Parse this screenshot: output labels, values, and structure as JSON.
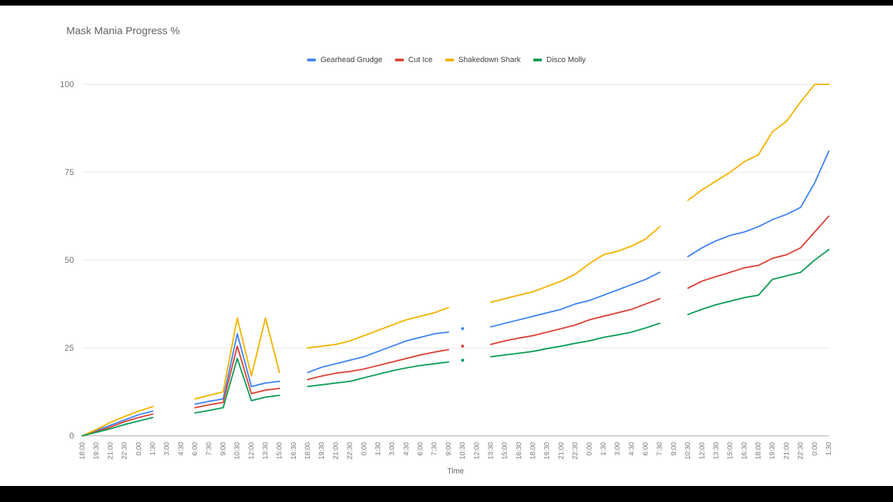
{
  "page": {
    "background": "#000000",
    "card_background": "#ffffff"
  },
  "chart_data": {
    "type": "line",
    "title": "Mask Mania Progress %",
    "xlabel": "Time",
    "ylabel": "",
    "ylim": [
      0,
      100
    ],
    "yticks": [
      0,
      25,
      50,
      75,
      100
    ],
    "grid": true,
    "legend_position": "top",
    "colors": {
      "grid": "#e6e6e6",
      "axis_baseline": "#9e9e9e",
      "tick_text": "#757575"
    },
    "categories": [
      "18:00",
      "19:30",
      "21:00",
      "22:30",
      "0:00",
      "1:30",
      "3:00",
      "4:30",
      "6:00",
      "7:30",
      "9:00",
      "10:30",
      "12:00",
      "13:30",
      "15:00",
      "16:30",
      "18:00",
      "19:30",
      "21:00",
      "22:30",
      "0:00",
      "1:30",
      "3:00",
      "4:30",
      "6:00",
      "7:30",
      "9:00",
      "10:30",
      "12:00",
      "13:30",
      "15:00",
      "16:30",
      "18:00",
      "19:30",
      "21:00",
      "22:30",
      "0:00",
      "1:30",
      "3:00",
      "4:30",
      "6:00",
      "7:30",
      "9:00",
      "10:30",
      "12:00",
      "13:30",
      "15:00",
      "16:30",
      "18:00",
      "19:30",
      "21:00",
      "22:30",
      "0:00",
      "1:30"
    ],
    "series": [
      {
        "name": "Gearhead Grudge",
        "color": "#4285F4",
        "values": [
          0,
          1.5,
          3,
          4.5,
          6,
          7,
          null,
          null,
          9,
          9.8,
          10.5,
          29,
          14,
          15,
          15.5,
          null,
          18,
          19.5,
          20.5,
          21.5,
          22.5,
          24,
          25.5,
          27,
          28,
          29,
          29.5,
          null,
          null,
          31,
          32,
          33,
          34,
          35,
          36,
          37.5,
          38.5,
          40,
          41.5,
          43,
          44.5,
          46.5,
          null,
          51,
          53.5,
          55.5,
          57,
          58,
          59.5,
          61.5,
          63,
          65,
          72,
          81
        ]
      },
      {
        "name": "Cut Ice",
        "color": "#DB4437",
        "values": [
          0,
          1.2,
          2.5,
          4,
          5.2,
          6.2,
          null,
          null,
          8,
          8.8,
          9.5,
          25.5,
          12,
          13,
          13.5,
          null,
          16,
          17,
          17.8,
          18.3,
          19,
          20,
          21,
          22,
          23,
          23.8,
          24.5,
          null,
          null,
          26,
          27,
          27.8,
          28.5,
          29.5,
          30.5,
          31.5,
          33,
          34,
          35,
          36,
          37.5,
          39,
          null,
          42,
          44,
          45.3,
          46.5,
          47.8,
          48.5,
          50.5,
          51.5,
          53.5,
          58,
          62.5
        ]
      },
      {
        "name": "Shakedown Shark",
        "color": "#F4B400",
        "values": [
          0,
          1.8,
          3.8,
          5.5,
          7,
          8.3,
          null,
          null,
          10.5,
          11.5,
          12.5,
          33.5,
          17,
          33.5,
          18,
          null,
          25,
          25.5,
          26,
          27,
          28.5,
          30,
          31.5,
          33,
          34,
          35,
          36.5,
          null,
          null,
          38,
          39,
          40,
          41,
          42.5,
          44,
          46,
          49,
          51.5,
          52.5,
          54,
          56,
          59.5,
          null,
          67,
          70,
          72.5,
          75,
          78,
          80,
          86.5,
          89.5,
          95,
          100,
          100
        ]
      },
      {
        "name": "Disco Molly",
        "color": "#0F9D58",
        "values": [
          0,
          1,
          2,
          3.2,
          4.2,
          5.2,
          null,
          null,
          6.5,
          7.2,
          8,
          22,
          10,
          11,
          11.5,
          null,
          14,
          14.5,
          15,
          15.5,
          16.5,
          17.5,
          18.5,
          19.3,
          20,
          20.5,
          21,
          null,
          null,
          22.5,
          23,
          23.5,
          24,
          24.8,
          25.5,
          26.3,
          27,
          28,
          28.7,
          29.5,
          30.7,
          32,
          null,
          34.5,
          36,
          37.3,
          38.3,
          39.3,
          40,
          44.5,
          45.5,
          46.5,
          50,
          53
        ]
      }
    ],
    "isolated_points": [
      {
        "series": "Gearhead Grudge",
        "index": 27,
        "value": 30.5
      },
      {
        "series": "Cut Ice",
        "index": 27,
        "value": 25.5
      },
      {
        "series": "Disco Molly",
        "index": 27,
        "value": 21.5
      }
    ]
  }
}
